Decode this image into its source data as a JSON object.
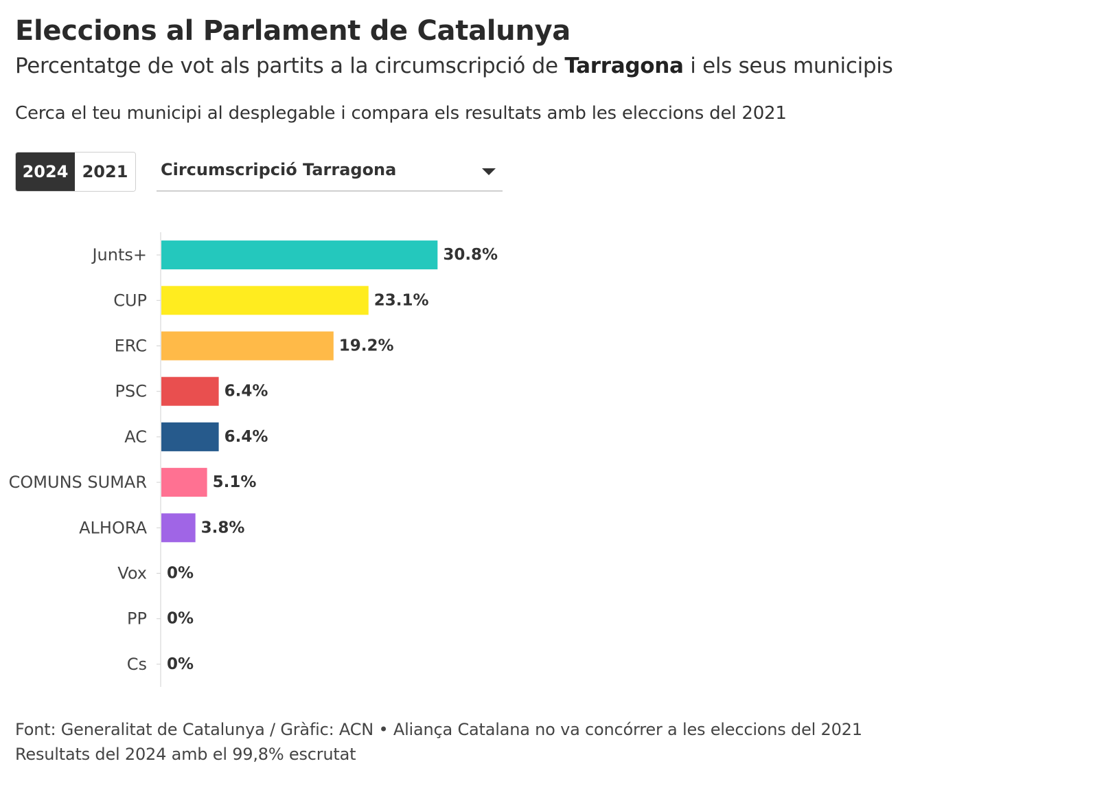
{
  "header": {
    "title": "Eleccions al Parlament de Catalunya",
    "subtitle_before": "Percentatge de vot als partits a la circumscripció de ",
    "subtitle_bold": "Tarragona",
    "subtitle_after": " i els seus municipis",
    "intro": "Cerca el teu municipi al desplegable i compara els resultats amb les eleccions del 2021"
  },
  "controls": {
    "year_active": "2024",
    "year_inactive": "2021",
    "dropdown_value": "Circumscripció Tarragona"
  },
  "chart_data": {
    "type": "bar",
    "orientation": "horizontal",
    "categories": [
      "Junts+",
      "CUP",
      "ERC",
      "PSC",
      "AC",
      "COMUNS SUMAR",
      "ALHORA",
      "Vox",
      "PP",
      "Cs"
    ],
    "values": [
      30.8,
      23.1,
      19.2,
      6.4,
      6.4,
      5.1,
      3.8,
      0,
      0,
      0
    ],
    "value_labels": [
      "30.8%",
      "23.1%",
      "19.2%",
      "6.4%",
      "6.4%",
      "5.1%",
      "3.8%",
      "0%",
      "0%",
      "0%"
    ],
    "colors": [
      "#24c8bd",
      "#ffec1f",
      "#ffba48",
      "#e94f4f",
      "#265a8c",
      "#ff7192",
      "#a065e6",
      "#6cbf3c",
      "#2d7fc9",
      "#f27a2f"
    ],
    "xlim": [
      0,
      32
    ],
    "grid": false,
    "legend": "none"
  },
  "footer": {
    "line1": "Font: Generalitat de Catalunya / Gràfic: ACN • Aliança Catalana no va concórrer a les eleccions del 2021",
    "line2": "Resultats del 2024 amb el 99,8% escrutat"
  }
}
